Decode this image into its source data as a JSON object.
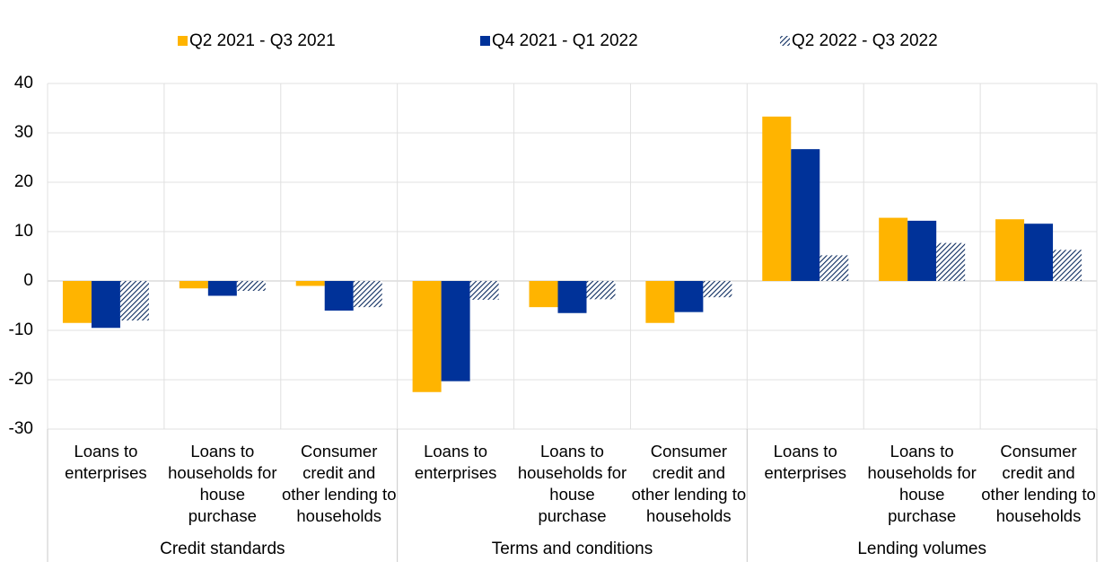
{
  "chart_data": {
    "type": "bar",
    "categories": [
      "Loans to enterprises",
      "Loans to households for house purchase",
      "Consumer credit and other lending to households",
      "Loans to enterprises",
      "Loans to households for house purchase",
      "Consumer credit and other lending to households",
      "Loans to enterprises",
      "Loans to households for house purchase",
      "Consumer credit and other lending to households"
    ],
    "groups": [
      "Credit standards",
      "Terms and conditions",
      "Lending volumes"
    ],
    "series": [
      {
        "name": "Q2 2021 - Q3 2021",
        "color": "#ffb400",
        "values": [
          -8.5,
          -1.5,
          -1,
          -22.5,
          -5.3,
          -8.5,
          33.3,
          12.8,
          12.5
        ]
      },
      {
        "name": "Q4 2021 - Q1 2022",
        "color": "#003299",
        "values": [
          -9.5,
          -3,
          -6,
          -20.3,
          -6.5,
          -6.3,
          26.7,
          12.2,
          11.6
        ]
      },
      {
        "name": "Q2 2022 - Q3 2022",
        "color": "#0a2a5e",
        "hatch": true,
        "values": [
          -8,
          -2,
          -5.3,
          -3.8,
          -3.7,
          -3.3,
          5.2,
          7.7,
          6.3
        ]
      }
    ],
    "ylim": [
      -30,
      40
    ],
    "yticks": [
      -30,
      -20,
      -10,
      0,
      10,
      20,
      30,
      40
    ],
    "grid": true
  }
}
